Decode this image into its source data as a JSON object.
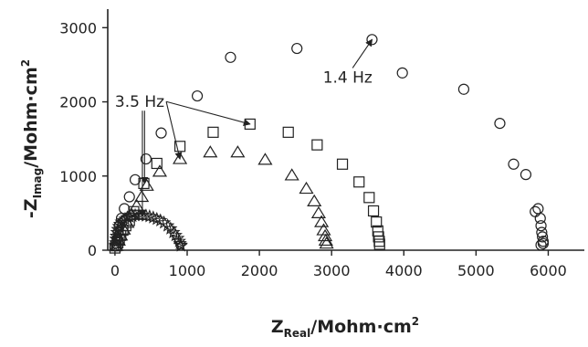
{
  "chart_data": {
    "type": "scatter",
    "xlabel": {
      "main": "Z",
      "sub": "Real",
      "unit": "/Mohm·cm",
      "sup": "2"
    },
    "ylabel": {
      "main": "-Z",
      "sub": "Imag",
      "unit": "/Mohm·cm",
      "sup": "2"
    },
    "xlim": [
      -100,
      6500
    ],
    "ylim": [
      0,
      3250
    ],
    "xticks": [
      0,
      1000,
      2000,
      3000,
      4000,
      5000,
      6000
    ],
    "yticks": [
      0,
      1000,
      2000,
      3000
    ],
    "grid": false,
    "legend": "none",
    "series": [
      {
        "marker": "circle",
        "x": [
          20,
          30,
          45,
          60,
          90,
          130,
          200,
          280,
          430,
          640,
          1140,
          1600,
          2520,
          3560,
          3980,
          4830,
          5330,
          5520,
          5690,
          5820,
          5860,
          5890,
          5900,
          5910,
          5920,
          5930,
          5930,
          5900
        ],
        "y": [
          60,
          150,
          240,
          330,
          430,
          560,
          720,
          950,
          1230,
          1580,
          2080,
          2600,
          2720,
          2840,
          2390,
          2170,
          1710,
          1160,
          1020,
          520,
          560,
          430,
          330,
          240,
          180,
          120,
          90,
          70
        ]
      },
      {
        "marker": "square",
        "x": [
          0,
          20,
          40,
          60,
          80,
          110,
          150,
          200,
          260,
          400,
          580,
          900,
          1360,
          1870,
          2400,
          2800,
          3150,
          3380,
          3520,
          3580,
          3620,
          3640,
          3650,
          3660,
          3665
        ],
        "y": [
          30,
          60,
          100,
          150,
          200,
          270,
          330,
          400,
          520,
          900,
          1170,
          1400,
          1590,
          1700,
          1590,
          1420,
          1160,
          920,
          710,
          530,
          380,
          260,
          180,
          120,
          80
        ],
        "annotation": "1.4 Hz"
      },
      {
        "marker": "triangle",
        "x": [
          20,
          50,
          80,
          120,
          170,
          230,
          300,
          370,
          440,
          620,
          900,
          1320,
          1700,
          2080,
          2450,
          2650,
          2760,
          2820,
          2860,
          2890,
          2910,
          2920,
          2930
        ],
        "y": [
          60,
          130,
          200,
          280,
          370,
          480,
          600,
          720,
          870,
          1060,
          1230,
          1320,
          1320,
          1220,
          1010,
          830,
          660,
          500,
          380,
          270,
          190,
          130,
          90
        ]
      },
      {
        "marker": "star",
        "x": [
          5,
          10,
          15,
          20,
          30,
          40,
          55,
          70,
          90,
          115,
          140,
          170,
          200,
          240,
          280,
          330,
          380,
          430,
          480,
          530,
          580,
          630,
          680,
          730,
          770,
          810,
          840,
          870,
          890,
          900,
          910,
          915
        ],
        "y": [
          60,
          100,
          150,
          190,
          240,
          280,
          320,
          350,
          380,
          400,
          420,
          440,
          450,
          460,
          470,
          470,
          470,
          465,
          455,
          440,
          420,
          400,
          370,
          330,
          290,
          240,
          200,
          160,
          120,
          90,
          70,
          60
        ]
      }
    ],
    "annotations": [
      {
        "text": "3.5 Hz",
        "x": 0,
        "y": 1930,
        "arrows_to": [
          [
            1870,
            1700
          ],
          [
            900,
            1230
          ],
          [
            410,
            900
          ],
          [
            380,
            460
          ]
        ]
      },
      {
        "text": "1.4 Hz",
        "x": 2880,
        "y": 2260,
        "arrows_to": [
          [
            3560,
            2840
          ]
        ]
      }
    ]
  }
}
